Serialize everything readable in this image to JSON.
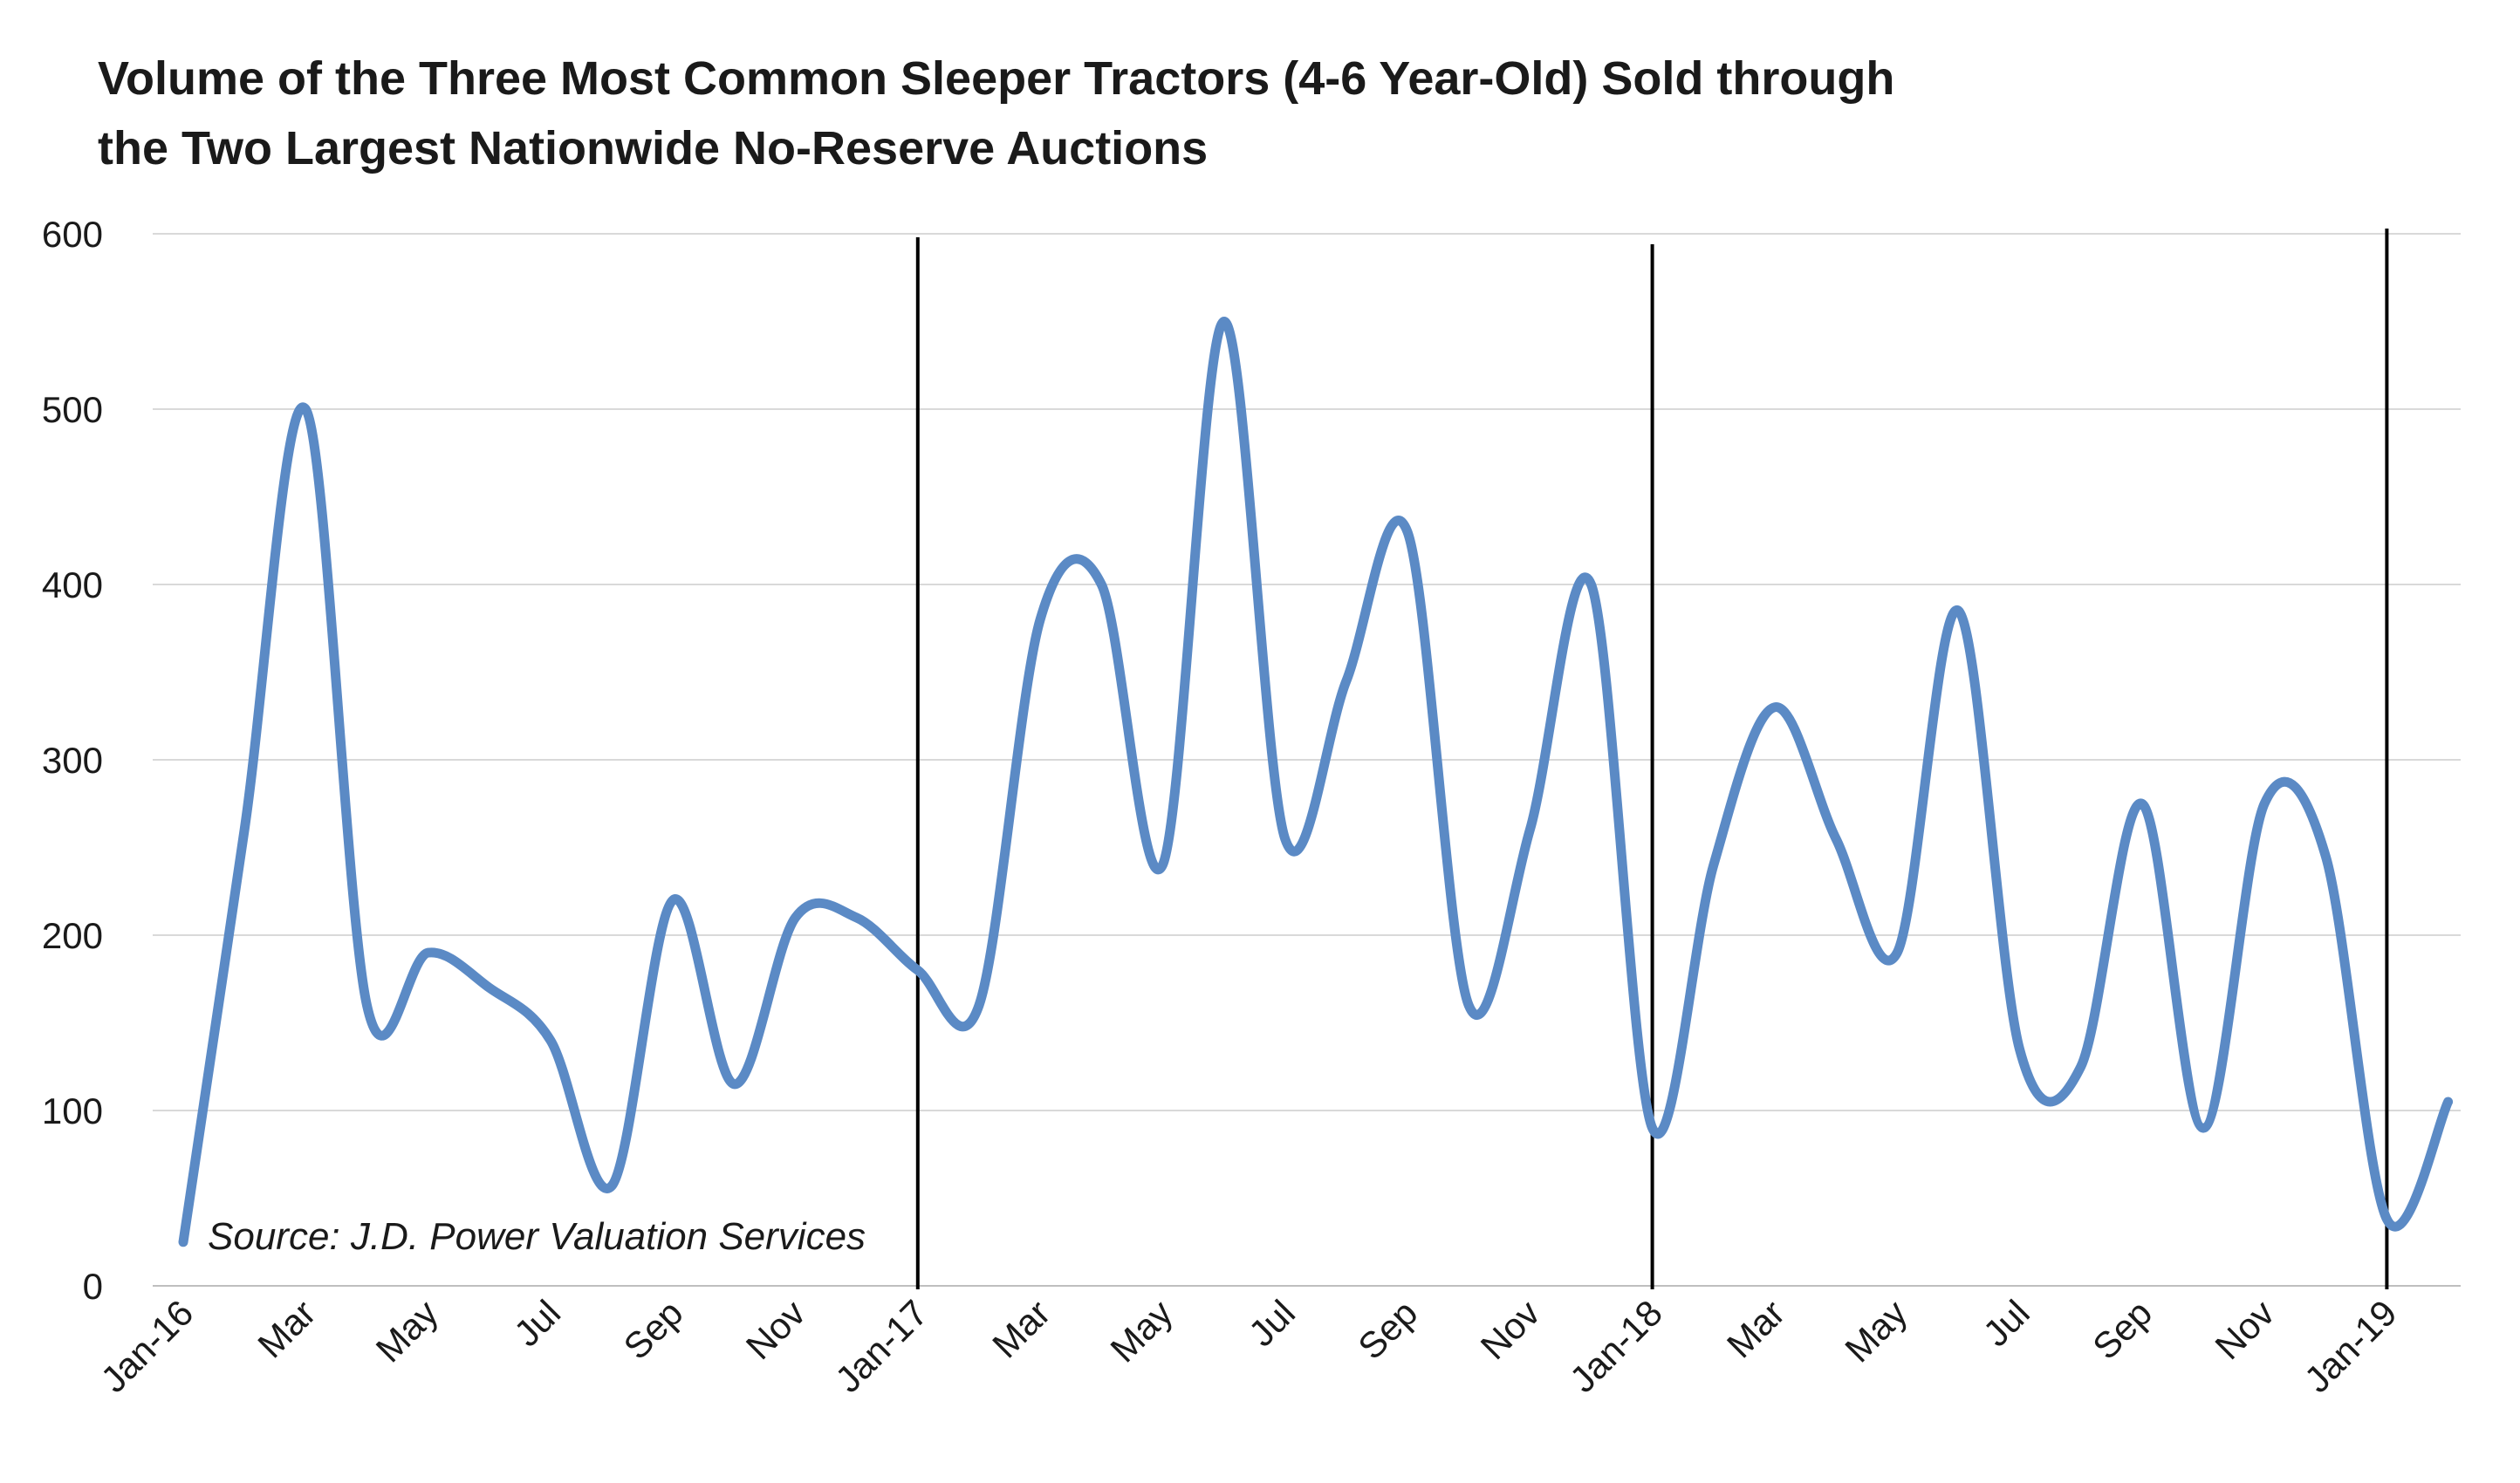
{
  "chart_data": {
    "type": "line",
    "title": "Volume of the Three Most Common Sleeper Tractors (4-6 Year-Old) Sold through the Two Largest Nationwide No-Reserve Auctions",
    "title_lines": [
      "Volume of the Three Most Common Sleeper Tractors (4-6 Year-Old) Sold through",
      "the Two Largest Nationwide No-Reserve Auctions"
    ],
    "source": "Source: J.D. Power Valuation Services",
    "xlabel": "",
    "ylabel": "",
    "ylim": [
      0,
      600
    ],
    "yticks": [
      "0",
      "100",
      "200",
      "300",
      "400",
      "500",
      "600"
    ],
    "grid": true,
    "legend": "none",
    "x_tick_labels": [
      "Jan-16",
      "Mar",
      "May",
      "Jul",
      "Sep",
      "Nov",
      "Jan-17",
      "Mar",
      "May",
      "Jul",
      "Sep",
      "Nov",
      "Jan-18",
      "Mar",
      "May",
      "Jul",
      "Sep",
      "Nov",
      "Jan-19"
    ],
    "categories": [
      "Jan-16",
      "Feb-16",
      "Mar-16",
      "Apr-16",
      "May-16",
      "Jun-16",
      "Jul-16",
      "Aug-16",
      "Sep-16",
      "Oct-16",
      "Nov-16",
      "Dec-16",
      "Jan-17",
      "Feb-17",
      "Mar-17",
      "Apr-17",
      "May-17",
      "Jun-17",
      "Jul-17",
      "Aug-17",
      "Sep-17",
      "Oct-17",
      "Nov-17",
      "Dec-17",
      "Jan-18",
      "Feb-18",
      "Mar-18",
      "Apr-18",
      "May-18",
      "Jun-18",
      "Jul-18",
      "Aug-18",
      "Sep-18",
      "Oct-18",
      "Nov-18",
      "Dec-18",
      "Jan-19",
      "Feb-19"
    ],
    "series": [
      {
        "color": "#5B8AC5",
        "values": [
          25,
          260,
          500,
          160,
          190,
          170,
          140,
          57,
          220,
          115,
          210,
          210,
          180,
          160,
          380,
          400,
          240,
          550,
          255,
          345,
          430,
          160,
          260,
          400,
          90,
          240,
          330,
          255,
          190,
          385,
          135,
          125,
          275,
          90,
          275,
          245,
          38,
          105
        ]
      }
    ],
    "vertical_lines_at": [
      "Jan-17",
      "Jan-18",
      "Jan-19"
    ]
  }
}
